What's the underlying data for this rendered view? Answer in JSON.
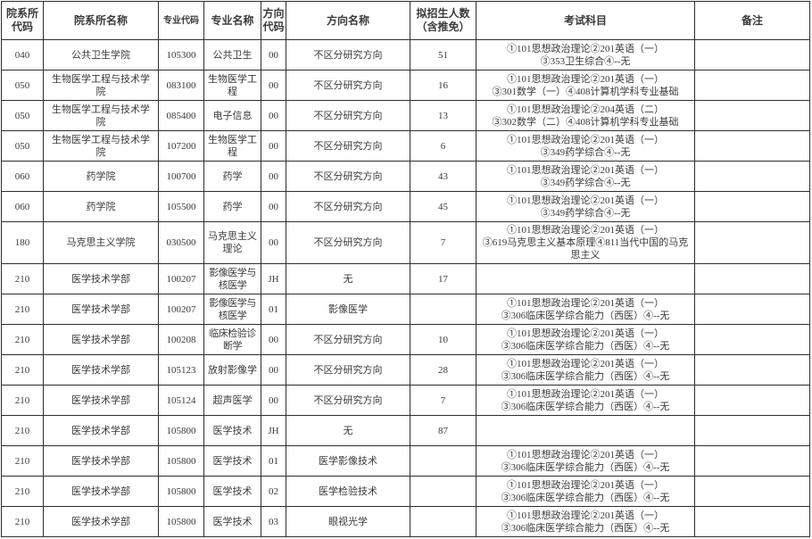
{
  "table": {
    "columns": [
      {
        "key": "dept_code",
        "label": "院系所\n代码"
      },
      {
        "key": "dept_name",
        "label": "院系所名称"
      },
      {
        "key": "major_code",
        "label": "专业代码"
      },
      {
        "key": "major_name",
        "label": "专业名称"
      },
      {
        "key": "dir_code",
        "label": "方向\n代码"
      },
      {
        "key": "dir_name",
        "label": "方向名称"
      },
      {
        "key": "quota",
        "label": "拟招生人数\n（含推免）"
      },
      {
        "key": "exam",
        "label": "考试科目"
      },
      {
        "key": "remark",
        "label": "备注"
      }
    ],
    "rows": [
      {
        "dept_code": "040",
        "dept_name": "公共卫生学院",
        "major_code": "105300",
        "major_name": "公共卫生",
        "major_small": false,
        "dir_code": "00",
        "dir_name": "不区分研究方向",
        "quota": "51",
        "exam": "①101思想政治理论②201英语（一）\n③353卫生综合④--无",
        "remark": ""
      },
      {
        "dept_code": "050",
        "dept_name": "生物医学工程与技术学院",
        "major_code": "083100",
        "major_name": "生物医学工程",
        "major_small": false,
        "dir_code": "00",
        "dir_name": "不区分研究方向",
        "quota": "16",
        "exam": "①101思想政治理论②201英语（一）\n③301数学（一）④408计算机学科专业基础",
        "remark": ""
      },
      {
        "dept_code": "050",
        "dept_name": "生物医学工程与技术学院",
        "major_code": "085400",
        "major_name": "电子信息",
        "major_small": false,
        "dir_code": "00",
        "dir_name": "不区分研究方向",
        "quota": "13",
        "exam": "①101思想政治理论②204英语（二）\n③302数学（二）④408计算机学科专业基础",
        "remark": ""
      },
      {
        "dept_code": "050",
        "dept_name": "生物医学工程与技术学院",
        "major_code": "107200",
        "major_name": "生物医学工程",
        "major_small": false,
        "dir_code": "00",
        "dir_name": "不区分研究方向",
        "quota": "6",
        "exam": "①101思想政治理论②201英语（一）\n③349药学综合④--无",
        "remark": ""
      },
      {
        "dept_code": "060",
        "dept_name": "药学院",
        "major_code": "100700",
        "major_name": "药学",
        "major_small": false,
        "dir_code": "00",
        "dir_name": "不区分研究方向",
        "quota": "43",
        "exam": "①101思想政治理论②201英语（一）\n③349药学综合④--无",
        "remark": ""
      },
      {
        "dept_code": "060",
        "dept_name": "药学院",
        "major_code": "105500",
        "major_name": "药学",
        "major_small": false,
        "dir_code": "00",
        "dir_name": "不区分研究方向",
        "quota": "45",
        "exam": "①101思想政治理论②201英语（一）\n③349药学综合④--无",
        "remark": ""
      },
      {
        "dept_code": "180",
        "dept_name": "马克思主义学院",
        "major_code": "030500",
        "major_name": "马克思主义理论",
        "major_small": false,
        "dir_code": "00",
        "dir_name": "不区分研究方向",
        "quota": "7",
        "exam": "①101思想政治理论②201英语（一）\n③619马克思主义基本原理④811当代中国的马克思主义",
        "remark": ""
      },
      {
        "dept_code": "210",
        "dept_name": "医学技术学部",
        "major_code": "100207",
        "major_name": "影像医学与核医学",
        "major_small": true,
        "dir_code": "JH",
        "dir_name": "无",
        "quota": "17",
        "exam": "",
        "remark": ""
      },
      {
        "dept_code": "210",
        "dept_name": "医学技术学部",
        "major_code": "100207",
        "major_name": "影像医学与核医学",
        "major_small": true,
        "dir_code": "01",
        "dir_name": "影像医学",
        "quota": "",
        "exam": "①101思想政治理论②201英语（一）\n③306临床医学综合能力（西医）④--无",
        "remark": ""
      },
      {
        "dept_code": "210",
        "dept_name": "医学技术学部",
        "major_code": "100208",
        "major_name": "临床检验诊断学",
        "major_small": true,
        "dir_code": "00",
        "dir_name": "不区分研究方向",
        "quota": "10",
        "exam": "①101思想政治理论②201英语（一）\n③306临床医学综合能力（西医）④--无",
        "remark": ""
      },
      {
        "dept_code": "210",
        "dept_name": "医学技术学部",
        "major_code": "105123",
        "major_name": "放射影像学",
        "major_small": false,
        "dir_code": "00",
        "dir_name": "不区分研究方向",
        "quota": "28",
        "exam": "①101思想政治理论②201英语（一）\n③306临床医学综合能力（西医）④--无",
        "remark": ""
      },
      {
        "dept_code": "210",
        "dept_name": "医学技术学部",
        "major_code": "105124",
        "major_name": "超声医学",
        "major_small": false,
        "dir_code": "00",
        "dir_name": "不区分研究方向",
        "quota": "7",
        "exam": "①101思想政治理论②201英语（一）\n③306临床医学综合能力（西医）④--无",
        "remark": ""
      },
      {
        "dept_code": "210",
        "dept_name": "医学技术学部",
        "major_code": "105800",
        "major_name": "医学技术",
        "major_small": false,
        "dir_code": "JH",
        "dir_name": "无",
        "quota": "87",
        "exam": "",
        "remark": ""
      },
      {
        "dept_code": "210",
        "dept_name": "医学技术学部",
        "major_code": "105800",
        "major_name": "医学技术",
        "major_small": false,
        "dir_code": "01",
        "dir_name": "医学影像技术",
        "quota": "",
        "exam": "①101思想政治理论②201英语（一）\n③306临床医学综合能力（西医）④--无",
        "remark": ""
      },
      {
        "dept_code": "210",
        "dept_name": "医学技术学部",
        "major_code": "105800",
        "major_name": "医学技术",
        "major_small": false,
        "dir_code": "02",
        "dir_name": "医学检验技术",
        "quota": "",
        "exam": "①101思想政治理论②201英语（一）\n③306临床医学综合能力（西医）④--无",
        "remark": ""
      },
      {
        "dept_code": "210",
        "dept_name": "医学技术学部",
        "major_code": "105800",
        "major_name": "医学技术",
        "major_small": false,
        "dir_code": "03",
        "dir_name": "眼视光学",
        "quota": "",
        "exam": "①101思想政治理论②201英语（一）\n③306临床医学综合能力（西医）④--无",
        "remark": ""
      }
    ]
  }
}
